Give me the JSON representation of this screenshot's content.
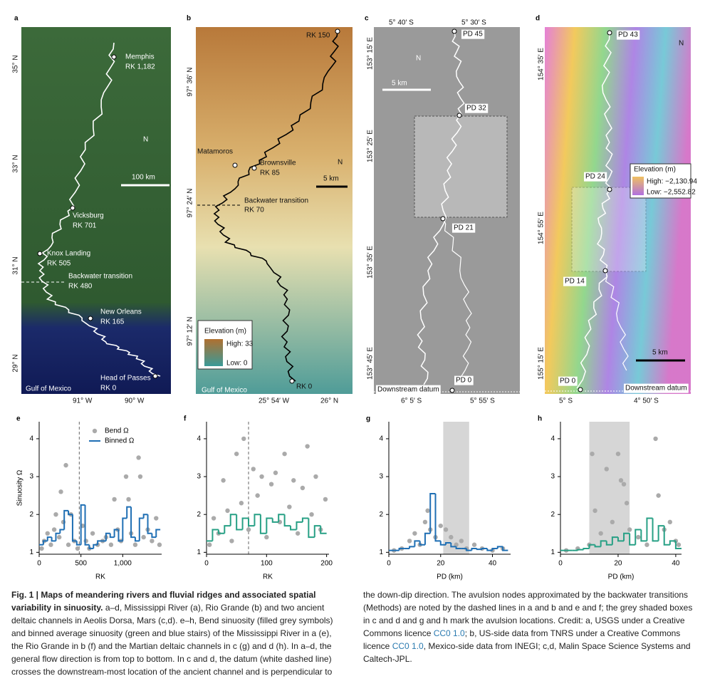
{
  "figure": {
    "panels": [
      {
        "letter": "a",
        "labels": [
          "35° N",
          "33° N",
          "31° N",
          "29° N",
          "91° W",
          "90° W",
          "Memphis",
          "RK 1,182",
          "Vicksburg",
          "RK 701",
          "Knox Landing",
          "RK 505",
          "Backwater transition",
          "RK 480",
          "New Orleans",
          "RK 165",
          "Head of Passes",
          "RK 0",
          "Gulf of Mexico",
          "N",
          "100 km"
        ]
      },
      {
        "letter": "b",
        "labels": [
          "97° 36′ N",
          "97° 24′ N",
          "97° 12′ N",
          "25° 54′ W",
          "26° N",
          "RK 150",
          "Matamoros",
          "Brownsville",
          "RK 85",
          "Backwater transition",
          "RK 70",
          "RK 0",
          "N",
          "5 km",
          "Elevation (m)",
          "High: 33",
          "Low: 0",
          "Gulf of Mexico"
        ]
      },
      {
        "letter": "c",
        "labels": [
          "5° 40′ S",
          "5° 30′ S",
          "153° 15′ E",
          "153° 25′ E",
          "153° 35′ E",
          "153° 45′ E",
          "6° 5′ S",
          "5° 55′ S",
          "PD 45",
          "PD 32",
          "PD 21",
          "PD 0",
          "N",
          "5 km",
          "Downstream datum"
        ]
      },
      {
        "letter": "d",
        "labels": [
          "154° 35′ E",
          "154° 55′ E",
          "155° 15′ E",
          "5° S",
          "4° 50′ S",
          "PD 43",
          "PD 24",
          "PD 14",
          "PD 0",
          "N",
          "Elevation (m)",
          "High: −2,130.94",
          "Low: −2,552.82",
          "5 km",
          "Downstream datum"
        ]
      }
    ]
  },
  "chart_data": [
    {
      "type": "scatter",
      "label": "e",
      "ylabel": "Sinuosity Ω",
      "xlabel": "RK",
      "xlim": [
        0,
        1466
      ],
      "ylim": [
        0.95,
        4.45
      ],
      "xticks": [
        0,
        500,
        {
          "value": 1000,
          "label": "1,000"
        }
      ],
      "yticks": [
        1,
        2,
        3,
        4
      ],
      "vline": 480,
      "series": [
        {
          "type": "scatter",
          "name": "Bend Ω",
          "color": "#aaaaaa",
          "x": [
            30,
            60,
            100,
            140,
            180,
            200,
            240,
            260,
            290,
            320,
            350,
            380,
            420,
            460,
            520,
            560,
            600,
            640,
            700,
            760,
            800,
            860,
            900,
            940,
            980,
            1040,
            1070,
            1100,
            1150,
            1190,
            1210,
            1250,
            1300,
            1350,
            1400,
            1440
          ],
          "values": [
            1.1,
            1.3,
            1.5,
            1.2,
            1.6,
            2.0,
            1.4,
            2.6,
            1.8,
            3.3,
            1.2,
            2.0,
            1.3,
            1.1,
            1.7,
            1.3,
            1.1,
            1.5,
            1.2,
            1.3,
            1.4,
            1.2,
            2.4,
            1.6,
            1.3,
            3.0,
            2.4,
            1.5,
            1.2,
            3.5,
            3.0,
            1.4,
            1.6,
            1.3,
            1.9,
            1.2
          ]
        },
        {
          "type": "step",
          "name": "Binned Ω",
          "color": "#1f6fb4",
          "bins": [
            0,
            50,
            100,
            150,
            200,
            250,
            300,
            350,
            400,
            450,
            500,
            550,
            600,
            650,
            700,
            750,
            800,
            850,
            900,
            950,
            1000,
            1050,
            1100,
            1150,
            1200,
            1250,
            1300,
            1350,
            1400,
            1450
          ],
          "values": [
            1.2,
            1.3,
            1.4,
            1.3,
            1.5,
            1.6,
            2.1,
            2.0,
            1.3,
            1.2,
            2.25,
            1.2,
            1.1,
            1.2,
            1.3,
            1.3,
            1.5,
            1.4,
            1.6,
            1.3,
            1.9,
            2.2,
            1.4,
            1.3,
            1.9,
            2.0,
            1.5,
            1.4,
            1.6
          ]
        }
      ]
    },
    {
      "type": "scatter",
      "label": "f",
      "xlabel": "RK",
      "xlim": [
        0,
        204
      ],
      "ylim": [
        0.95,
        4.45
      ],
      "xticks": [
        0,
        100,
        200
      ],
      "yticks": [
        1,
        2,
        3,
        4
      ],
      "vline": 70,
      "series": [
        {
          "type": "scatter",
          "color": "#aaaaaa",
          "x": [
            5,
            12,
            20,
            28,
            35,
            42,
            50,
            58,
            62,
            70,
            78,
            85,
            92,
            100,
            108,
            115,
            122,
            130,
            138,
            145,
            152,
            160,
            168,
            175,
            182,
            190,
            198
          ],
          "values": [
            1.2,
            1.9,
            1.5,
            2.9,
            2.1,
            1.3,
            3.6,
            2.3,
            4.0,
            1.6,
            3.2,
            2.5,
            3.0,
            1.4,
            2.8,
            3.1,
            1.8,
            3.6,
            2.2,
            2.9,
            1.5,
            2.7,
            3.8,
            2.0,
            3.0,
            1.6,
            2.4
          ]
        },
        {
          "type": "step",
          "color": "#27a085",
          "bins": [
            0,
            10,
            20,
            30,
            40,
            50,
            60,
            70,
            80,
            90,
            100,
            110,
            120,
            130,
            140,
            150,
            160,
            170,
            180,
            190,
            200
          ],
          "values": [
            1.3,
            1.6,
            1.5,
            1.7,
            2.0,
            1.6,
            1.9,
            1.7,
            2.0,
            1.5,
            1.9,
            1.8,
            2.0,
            1.7,
            1.6,
            1.8,
            1.9,
            1.4,
            1.7,
            1.5
          ]
        }
      ]
    },
    {
      "type": "scatter",
      "label": "g",
      "xlabel": "PD (km)",
      "xlim": [
        0,
        47
      ],
      "ylim": [
        0.95,
        4.45
      ],
      "xticks": [
        0,
        20,
        40
      ],
      "yticks": [
        1,
        2,
        3,
        4
      ],
      "shade": [
        21,
        31
      ],
      "series": [
        {
          "type": "scatter",
          "color": "#aaaaaa",
          "x": [
            2,
            5,
            8,
            10,
            12,
            14,
            15,
            16,
            18,
            20,
            22,
            24,
            26,
            28,
            30,
            33,
            36,
            40,
            44
          ],
          "values": [
            1.05,
            1.1,
            1.3,
            1.5,
            1.2,
            1.8,
            2.1,
            1.6,
            1.4,
            1.7,
            1.6,
            1.4,
            1.2,
            1.3,
            1.1,
            1.2,
            1.1,
            1.05,
            1.1
          ]
        },
        {
          "type": "step",
          "color": "#1f6fb4",
          "bins": [
            0,
            2,
            4,
            6,
            8,
            10,
            12,
            14,
            16,
            18,
            20,
            22,
            24,
            26,
            28,
            30,
            32,
            34,
            36,
            38,
            40,
            42,
            44,
            46
          ],
          "values": [
            1.05,
            1.05,
            1.1,
            1.1,
            1.15,
            1.3,
            1.2,
            1.5,
            2.55,
            1.3,
            1.2,
            1.25,
            1.15,
            1.1,
            1.1,
            1.05,
            1.1,
            1.08,
            1.1,
            1.05,
            1.1,
            1.15,
            1.05
          ]
        }
      ]
    },
    {
      "type": "scatter",
      "label": "h",
      "xlabel": "PD (km)",
      "xlim": [
        0,
        42
      ],
      "ylim": [
        0.95,
        4.45
      ],
      "xticks": [
        0,
        20,
        40
      ],
      "yticks": [
        1,
        2,
        3,
        4
      ],
      "shade": [
        10,
        24
      ],
      "series": [
        {
          "type": "scatter",
          "color": "#aaaaaa",
          "x": [
            2,
            6,
            10,
            11,
            12,
            14,
            16,
            18,
            20,
            21,
            22,
            23,
            24,
            27,
            30,
            33,
            34,
            36,
            38,
            40,
            41
          ],
          "values": [
            1.05,
            1.1,
            1.2,
            3.6,
            2.1,
            1.5,
            3.2,
            1.8,
            3.6,
            2.9,
            2.8,
            2.3,
            1.6,
            1.4,
            1.2,
            4.0,
            2.5,
            1.6,
            1.8,
            1.3,
            1.2
          ]
        },
        {
          "type": "step",
          "color": "#27a085",
          "bins": [
            0,
            2,
            4,
            6,
            8,
            10,
            12,
            14,
            16,
            18,
            20,
            22,
            24,
            26,
            28,
            30,
            32,
            34,
            36,
            38,
            40,
            42
          ],
          "values": [
            1.05,
            1.05,
            1.05,
            1.07,
            1.1,
            1.2,
            1.15,
            1.3,
            1.2,
            1.4,
            1.3,
            1.5,
            1.2,
            1.6,
            1.3,
            1.9,
            1.3,
            1.7,
            1.2,
            1.3,
            1.1
          ]
        }
      ]
    }
  ],
  "caption": {
    "label": "Fig. 1 | ",
    "title": "Maps of meandering rivers and fluvial ridges and associated spatial variability in sinuosity.",
    "parts": [
      " a–d, Mississippi River (a), Rio Grande (b) and two ancient deltaic channels in Aeolis Dorsa, Mars (c,d). e–h, Bend sinuosity (filled grey symbols) and binned average sinuosity (green and blue stairs) of the Mississippi River in a (e), the Rio Grande in b (f) and the Martian deltaic channels in c (g) and d (h). In a–d, the general flow direction is from top to bottom. In c and d, the datum (white dashed line) crosses the downstream-most location of the ancient channel and is perpendicular to the down-dip direction. The avulsion nodes approximated by the backwater transitions (Methods) are noted by the dashed lines in a and b and e and f; the grey shaded boxes in c and d and g and h mark the avulsion locations. Credit: a, USGS under a Creative Commons licence ",
      "CC0 1.0",
      "; b, US-side data from TNRS under a Creative Commons licence ",
      "CC0 1.0",
      ", Mexico-side data from INEGI; c,d, Malin Space Science Systems and Caltech-JPL."
    ]
  }
}
